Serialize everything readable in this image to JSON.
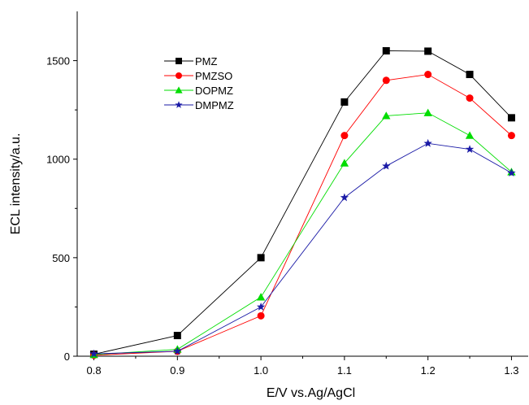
{
  "chart_data": {
    "type": "line",
    "xlabel": "E/V vs.Ag/AgCl",
    "ylabel": "ECL intensity/a.u.",
    "xlim": [
      0.78,
      1.32
    ],
    "ylim": [
      0,
      1750
    ],
    "x_ticks": [
      0.8,
      0.9,
      1.0,
      1.1,
      1.2,
      1.3
    ],
    "x_tick_labels": [
      "0.8",
      "0.9",
      "1.0",
      "1.1",
      "1.2",
      "1.3"
    ],
    "y_ticks": [
      0,
      500,
      1000,
      1500
    ],
    "y_tick_labels": [
      "0",
      "500",
      "1000",
      "1500"
    ],
    "legend_position": "top-left",
    "x": [
      0.8,
      0.9,
      1.0,
      1.1,
      1.15,
      1.2,
      1.25,
      1.3
    ],
    "series": [
      {
        "name": "PMZ",
        "marker": "square",
        "color": "#000000",
        "values": [
          10,
          105,
          500,
          1290,
          1550,
          1548,
          1430,
          1210
        ]
      },
      {
        "name": "PMZSO",
        "marker": "circle",
        "color": "#ff0000",
        "values": [
          5,
          25,
          205,
          1120,
          1400,
          1430,
          1310,
          1120
        ]
      },
      {
        "name": "DOPMZ",
        "marker": "triangle",
        "color": "#00dd00",
        "values": [
          8,
          35,
          300,
          980,
          1220,
          1235,
          1120,
          935
        ]
      },
      {
        "name": "DMPMZ",
        "marker": "star",
        "color": "#1a1aa6",
        "values": [
          12,
          25,
          250,
          805,
          965,
          1080,
          1050,
          930
        ]
      }
    ]
  }
}
